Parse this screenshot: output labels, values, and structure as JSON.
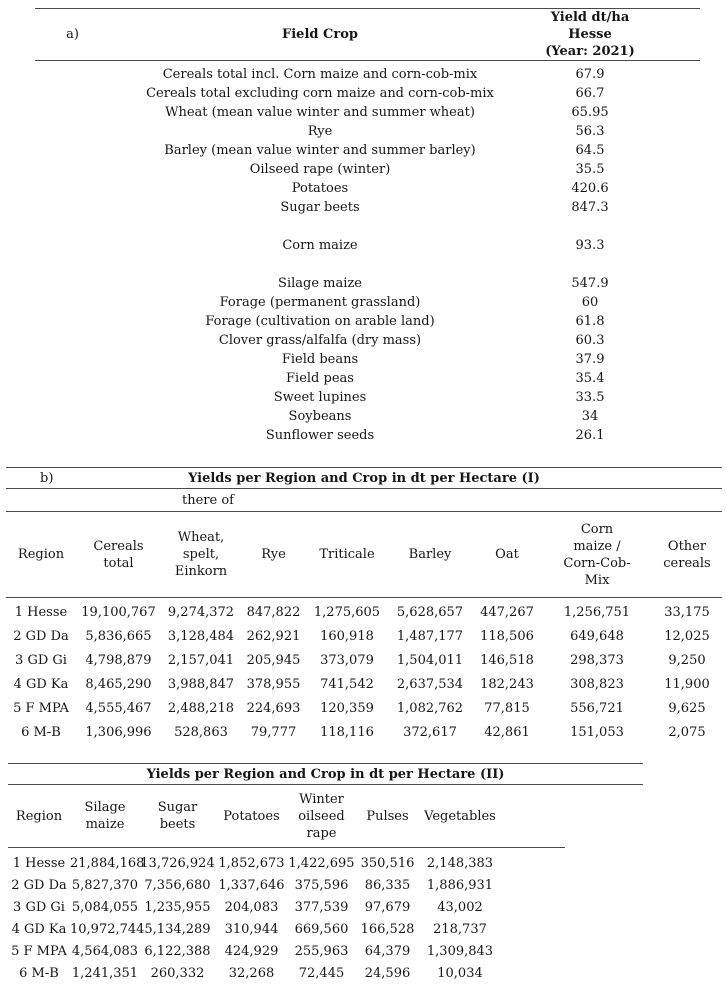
{
  "table_a": {
    "label": "a)",
    "col_crop_header": "Field Crop",
    "col_value_header": "Yield dt/ha Hesse\n(Year: 2021)",
    "rows": [
      {
        "crop": "Cereals total incl. Corn maize and corn-cob-mix",
        "value": "67.9"
      },
      {
        "crop": "Cereals total excluding corn maize and corn-cob-mix",
        "value": "66.7"
      },
      {
        "crop": "Wheat (mean value winter and summer wheat)",
        "value": "65.95"
      },
      {
        "crop": "Rye",
        "value": "56.3"
      },
      {
        "crop": "Barley (mean value winter and summer barley)",
        "value": "64.5"
      },
      {
        "crop": "Oilseed rape (winter)",
        "value": "35.5"
      },
      {
        "crop": "Potatoes",
        "value": "420.6"
      },
      {
        "crop": "Sugar beets",
        "value": "847.3"
      },
      {
        "crop": "",
        "value": ""
      },
      {
        "crop": "Corn maize",
        "value": "93.3"
      },
      {
        "crop": "",
        "value": ""
      },
      {
        "crop": "Silage maize",
        "value": "547.9"
      },
      {
        "crop": "Forage (permanent grassland)",
        "value": "60"
      },
      {
        "crop": "Forage (cultivation on arable land)",
        "value": "61.8"
      },
      {
        "crop": "Clover grass/alfalfa (dry mass)",
        "value": "60.3"
      },
      {
        "crop": "Field beans",
        "value": "37.9"
      },
      {
        "crop": "Field peas",
        "value": "35.4"
      },
      {
        "crop": "Sweet lupines",
        "value": "33.5"
      },
      {
        "crop": "Soybeans",
        "value": "34"
      },
      {
        "crop": "Sunflower seeds",
        "value": "26.1"
      }
    ]
  },
  "table_b1": {
    "label": "b)",
    "title": "Yields per Region and Crop in dt per Hectare (I)",
    "thereof_label": "there of",
    "headers": [
      "Region",
      "Cereals\ntotal",
      "Wheat,\nspelt,\nEinkorn",
      "Rye",
      "Triticale",
      "Barley",
      "Oat",
      "Corn\nmaize /\nCorn-Cob-\nMix",
      "Other\ncereals"
    ],
    "rows": [
      [
        "1 Hesse",
        "19,100,767",
        "9,274,372",
        "847,822",
        "1,275,605",
        "5,628,657",
        "447,267",
        "1,256,751",
        "33,175"
      ],
      [
        "2 GD Da",
        "5,836,665",
        "3,128,484",
        "262,921",
        "160,918",
        "1,487,177",
        "118,506",
        "649,648",
        "12,025"
      ],
      [
        "3 GD Gi",
        "4,798,879",
        "2,157,041",
        "205,945",
        "373,079",
        "1,504,011",
        "146,518",
        "298,373",
        "9,250"
      ],
      [
        "4 GD Ka",
        "8,465,290",
        "3,988,847",
        "378,955",
        "741,542",
        "2,637,534",
        "182,243",
        "308,823",
        "11,900"
      ],
      [
        "5 F MPA",
        "4,555,467",
        "2,488,218",
        "224,693",
        "120,359",
        "1,082,762",
        "77,815",
        "556,721",
        "9,625"
      ],
      [
        "6 M-B",
        "1,306,996",
        "528,863",
        "79,777",
        "118,116",
        "372,617",
        "42,861",
        "151,053",
        "2,075"
      ]
    ]
  },
  "table_b2": {
    "title": "Yields per Region and Crop in dt per Hectare (II)",
    "headers": [
      "Region",
      "Silage\nmaize",
      "Sugar\nbeets",
      "Potatoes",
      "Winter\noilseed\nrape",
      "Pulses",
      "Vegetables"
    ],
    "rows": [
      [
        "1 Hesse",
        "21,884,168",
        "13,726,924",
        "1,852,673",
        "1,422,695",
        "350,516",
        "2,148,383"
      ],
      [
        "2 GD Da",
        "5,827,370",
        "7,356,680",
        "1,337,646",
        "375,596",
        "86,335",
        "1,886,931"
      ],
      [
        "3 GD Gi",
        "5,084,055",
        "1,235,955",
        "204,083",
        "377,539",
        "97,679",
        "43,002"
      ],
      [
        "4 GD Ka",
        "10,972,744",
        "5,134,289",
        "310,944",
        "669,560",
        "166,528",
        "218,737"
      ],
      [
        "5 F MPA",
        "4,564,083",
        "6,122,388",
        "424,929",
        "255,963",
        "64,379",
        "1,309,843"
      ],
      [
        "6 M-B",
        "1,241,351",
        "260,332",
        "32,268",
        "72,445",
        "24,596",
        "10,034"
      ]
    ]
  }
}
